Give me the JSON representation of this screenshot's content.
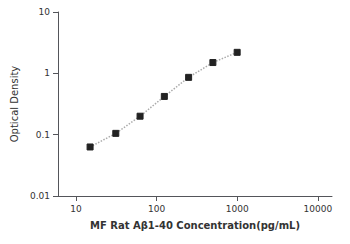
{
  "chart_data": {
    "type": "line",
    "x": [
      15,
      31.25,
      62.5,
      125,
      250,
      500,
      1000
    ],
    "values": [
      0.063,
      0.105,
      0.2,
      0.42,
      0.86,
      1.5,
      2.2
    ],
    "xlabel": "MF Rat Aβ1-40 Concentration(pg/mL)",
    "ylabel": "Optical Density",
    "xlim": [
      6,
      15000
    ],
    "ylim": [
      0.01,
      10
    ],
    "xticks": [
      10,
      100,
      1000,
      10000
    ],
    "yticks": [
      0.01,
      0.1,
      1,
      10
    ],
    "log": true,
    "grid": false,
    "color": "#aaaaaa",
    "colors": [
      "#222222",
      "#222222",
      "#222222",
      "#222222",
      "#222222",
      "#222222",
      "#222222"
    ],
    "marker": "square",
    "line_style": "dotted"
  }
}
